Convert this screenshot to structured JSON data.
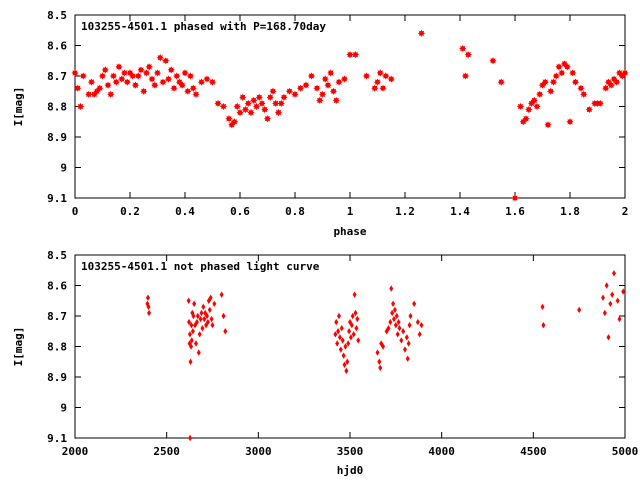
{
  "colors": {
    "points": "#ff0000",
    "axes": "#000000",
    "background": "#ffffff"
  },
  "chart_data": [
    {
      "type": "scatter",
      "title": "103255-4501.1 phased with P=168.70day",
      "xlabel": "phase",
      "ylabel": "I[mag]",
      "xlim": [
        0,
        2
      ],
      "ylim": [
        8.5,
        9.1
      ],
      "y_inverted": true,
      "grid": false,
      "marker": "filled-star",
      "xticks": [
        "0",
        "0.2",
        "0.4",
        "0.6",
        "0.8",
        "1",
        "1.2",
        "1.4",
        "1.6",
        "1.8",
        "2"
      ],
      "yticks": [
        "8.5",
        "8.6",
        "8.7",
        "8.8",
        "8.9",
        "9",
        "9.1"
      ],
      "series": [
        {
          "points": [
            [
              0.0,
              8.69
            ],
            [
              0.01,
              8.74
            ],
            [
              0.02,
              8.8
            ],
            [
              0.03,
              8.7
            ],
            [
              0.05,
              8.76
            ],
            [
              0.06,
              8.72
            ],
            [
              0.07,
              8.76
            ],
            [
              0.08,
              8.75
            ],
            [
              0.09,
              8.74
            ],
            [
              0.1,
              8.7
            ],
            [
              0.11,
              8.68
            ],
            [
              0.12,
              8.73
            ],
            [
              0.13,
              8.76
            ],
            [
              0.14,
              8.7
            ],
            [
              0.15,
              8.72
            ],
            [
              0.16,
              8.67
            ],
            [
              0.17,
              8.71
            ],
            [
              0.18,
              8.69
            ],
            [
              0.19,
              8.72
            ],
            [
              0.2,
              8.69
            ],
            [
              0.21,
              8.7
            ],
            [
              0.22,
              8.73
            ],
            [
              0.23,
              8.7
            ],
            [
              0.24,
              8.68
            ],
            [
              0.25,
              8.75
            ],
            [
              0.26,
              8.69
            ],
            [
              0.27,
              8.67
            ],
            [
              0.28,
              8.71
            ],
            [
              0.29,
              8.73
            ],
            [
              0.3,
              8.69
            ],
            [
              0.31,
              8.64
            ],
            [
              0.32,
              8.72
            ],
            [
              0.33,
              8.65
            ],
            [
              0.34,
              8.71
            ],
            [
              0.35,
              8.68
            ],
            [
              0.36,
              8.74
            ],
            [
              0.37,
              8.7
            ],
            [
              0.38,
              8.72
            ],
            [
              0.39,
              8.73
            ],
            [
              0.4,
              8.69
            ],
            [
              0.41,
              8.75
            ],
            [
              0.42,
              8.7
            ],
            [
              0.43,
              8.74
            ],
            [
              0.44,
              8.76
            ],
            [
              0.46,
              8.72
            ],
            [
              0.48,
              8.71
            ],
            [
              0.5,
              8.72
            ],
            [
              0.52,
              8.79
            ],
            [
              0.54,
              8.8
            ],
            [
              0.56,
              8.84
            ],
            [
              0.57,
              8.86
            ],
            [
              0.58,
              8.85
            ],
            [
              0.59,
              8.8
            ],
            [
              0.6,
              8.82
            ],
            [
              0.61,
              8.77
            ],
            [
              0.62,
              8.81
            ],
            [
              0.63,
              8.79
            ],
            [
              0.64,
              8.82
            ],
            [
              0.65,
              8.78
            ],
            [
              0.66,
              8.8
            ],
            [
              0.67,
              8.77
            ],
            [
              0.68,
              8.79
            ],
            [
              0.69,
              8.81
            ],
            [
              0.7,
              8.84
            ],
            [
              0.71,
              8.77
            ],
            [
              0.72,
              8.75
            ],
            [
              0.73,
              8.79
            ],
            [
              0.74,
              8.82
            ],
            [
              0.75,
              8.79
            ],
            [
              0.76,
              8.77
            ],
            [
              0.78,
              8.75
            ],
            [
              0.8,
              8.76
            ],
            [
              0.82,
              8.74
            ],
            [
              0.84,
              8.73
            ],
            [
              0.86,
              8.7
            ],
            [
              0.88,
              8.74
            ],
            [
              0.89,
              8.78
            ],
            [
              0.9,
              8.76
            ],
            [
              0.91,
              8.71
            ],
            [
              0.92,
              8.73
            ],
            [
              0.93,
              8.69
            ],
            [
              0.94,
              8.75
            ],
            [
              0.95,
              8.78
            ],
            [
              0.96,
              8.72
            ],
            [
              0.98,
              8.71
            ],
            [
              1.0,
              8.63
            ],
            [
              1.02,
              8.63
            ],
            [
              1.06,
              8.7
            ],
            [
              1.09,
              8.74
            ],
            [
              1.1,
              8.72
            ],
            [
              1.11,
              8.69
            ],
            [
              1.12,
              8.74
            ],
            [
              1.13,
              8.7
            ],
            [
              1.15,
              8.71
            ],
            [
              1.26,
              8.56
            ],
            [
              1.41,
              8.61
            ],
            [
              1.42,
              8.7
            ],
            [
              1.43,
              8.63
            ],
            [
              1.52,
              8.65
            ],
            [
              1.55,
              8.72
            ],
            [
              1.6,
              9.1
            ],
            [
              1.62,
              8.8
            ],
            [
              1.63,
              8.85
            ],
            [
              1.64,
              8.84
            ],
            [
              1.65,
              8.81
            ],
            [
              1.66,
              8.79
            ],
            [
              1.67,
              8.78
            ],
            [
              1.68,
              8.8
            ],
            [
              1.69,
              8.76
            ],
            [
              1.7,
              8.73
            ],
            [
              1.71,
              8.72
            ],
            [
              1.72,
              8.86
            ],
            [
              1.73,
              8.75
            ],
            [
              1.74,
              8.72
            ],
            [
              1.75,
              8.7
            ],
            [
              1.76,
              8.67
            ],
            [
              1.77,
              8.69
            ],
            [
              1.78,
              8.66
            ],
            [
              1.79,
              8.67
            ],
            [
              1.8,
              8.85
            ],
            [
              1.81,
              8.69
            ],
            [
              1.82,
              8.72
            ],
            [
              1.84,
              8.74
            ],
            [
              1.85,
              8.76
            ],
            [
              1.87,
              8.81
            ],
            [
              1.89,
              8.79
            ],
            [
              1.9,
              8.79
            ],
            [
              1.91,
              8.79
            ],
            [
              1.93,
              8.74
            ],
            [
              1.94,
              8.72
            ],
            [
              1.95,
              8.73
            ],
            [
              1.96,
              8.71
            ],
            [
              1.97,
              8.72
            ],
            [
              1.98,
              8.69
            ],
            [
              1.99,
              8.7
            ],
            [
              2.0,
              8.69
            ]
          ]
        }
      ]
    },
    {
      "type": "scatter",
      "title": "103255-4501.1 not phased light curve",
      "xlabel": "hjd0",
      "ylabel": "I[mag]",
      "xlim": [
        2000,
        5000
      ],
      "ylim": [
        8.5,
        9.1
      ],
      "y_inverted": true,
      "grid": false,
      "marker": "filled-diamond",
      "xticks": [
        "2000",
        "2500",
        "3000",
        "3500",
        "4000",
        "4500",
        "5000"
      ],
      "yticks": [
        "8.5",
        "8.6",
        "8.7",
        "8.8",
        "8.9",
        "9",
        "9.1"
      ],
      "series": [
        {
          "points": [
            [
              2395,
              8.66
            ],
            [
              2398,
              8.64
            ],
            [
              2401,
              8.67
            ],
            [
              2404,
              8.69
            ],
            [
              2620,
              8.65
            ],
            [
              2622,
              8.72
            ],
            [
              2625,
              8.79
            ],
            [
              2627,
              8.76
            ],
            [
              2630,
              8.85
            ],
            [
              2633,
              8.8
            ],
            [
              2635,
              8.73
            ],
            [
              2637,
              8.78
            ],
            [
              2640,
              8.69
            ],
            [
              2643,
              8.75
            ],
            [
              2646,
              8.7
            ],
            [
              2650,
              8.66
            ],
            [
              2655,
              8.73
            ],
            [
              2660,
              8.79
            ],
            [
              2665,
              8.72
            ],
            [
              2670,
              8.7
            ],
            [
              2675,
              8.82
            ],
            [
              2680,
              8.76
            ],
            [
              2685,
              8.71
            ],
            [
              2690,
              8.69
            ],
            [
              2695,
              8.74
            ],
            [
              2700,
              8.67
            ],
            [
              2705,
              8.71
            ],
            [
              2710,
              8.69
            ],
            [
              2715,
              8.73
            ],
            [
              2720,
              8.7
            ],
            [
              2725,
              8.72
            ],
            [
              2730,
              8.65
            ],
            [
              2735,
              8.68
            ],
            [
              2740,
              8.64
            ],
            [
              2745,
              8.71
            ],
            [
              2750,
              8.73
            ],
            [
              2760,
              8.66
            ],
            [
              2800,
              8.63
            ],
            [
              2810,
              8.7
            ],
            [
              2820,
              8.75
            ],
            [
              2628,
              9.1
            ],
            [
              3420,
              8.76
            ],
            [
              3425,
              8.72
            ],
            [
              3430,
              8.79
            ],
            [
              3435,
              8.75
            ],
            [
              3440,
              8.7
            ],
            [
              3445,
              8.77
            ],
            [
              3450,
              8.81
            ],
            [
              3455,
              8.74
            ],
            [
              3460,
              8.78
            ],
            [
              3465,
              8.83
            ],
            [
              3470,
              8.86
            ],
            [
              3475,
              8.8
            ],
            [
              3480,
              8.88
            ],
            [
              3485,
              8.85
            ],
            [
              3490,
              8.79
            ],
            [
              3495,
              8.75
            ],
            [
              3500,
              8.72
            ],
            [
              3505,
              8.77
            ],
            [
              3510,
              8.73
            ],
            [
              3515,
              8.7
            ],
            [
              3520,
              8.76
            ],
            [
              3525,
              8.63
            ],
            [
              3530,
              8.69
            ],
            [
              3535,
              8.74
            ],
            [
              3540,
              8.71
            ],
            [
              3545,
              8.78
            ],
            [
              3650,
              8.82
            ],
            [
              3660,
              8.85
            ],
            [
              3665,
              8.87
            ],
            [
              3670,
              8.79
            ],
            [
              3680,
              8.8
            ],
            [
              3700,
              8.75
            ],
            [
              3710,
              8.74
            ],
            [
              3720,
              8.72
            ],
            [
              3725,
              8.61
            ],
            [
              3730,
              8.69
            ],
            [
              3735,
              8.66
            ],
            [
              3740,
              8.71
            ],
            [
              3745,
              8.68
            ],
            [
              3750,
              8.73
            ],
            [
              3755,
              8.7
            ],
            [
              3760,
              8.76
            ],
            [
              3765,
              8.72
            ],
            [
              3770,
              8.74
            ],
            [
              3780,
              8.78
            ],
            [
              3790,
              8.75
            ],
            [
              3800,
              8.81
            ],
            [
              3810,
              8.77
            ],
            [
              3815,
              8.84
            ],
            [
              3820,
              8.79
            ],
            [
              3825,
              8.73
            ],
            [
              3830,
              8.7
            ],
            [
              3850,
              8.66
            ],
            [
              3870,
              8.72
            ],
            [
              3880,
              8.76
            ],
            [
              3890,
              8.73
            ],
            [
              4550,
              8.67
            ],
            [
              4555,
              8.73
            ],
            [
              4750,
              8.68
            ],
            [
              4880,
              8.64
            ],
            [
              4890,
              8.69
            ],
            [
              4900,
              8.6
            ],
            [
              4910,
              8.77
            ],
            [
              4920,
              8.66
            ],
            [
              4930,
              8.63
            ],
            [
              4940,
              8.56
            ],
            [
              4960,
              8.65
            ],
            [
              4970,
              8.71
            ],
            [
              4990,
              8.62
            ]
          ]
        }
      ]
    }
  ]
}
